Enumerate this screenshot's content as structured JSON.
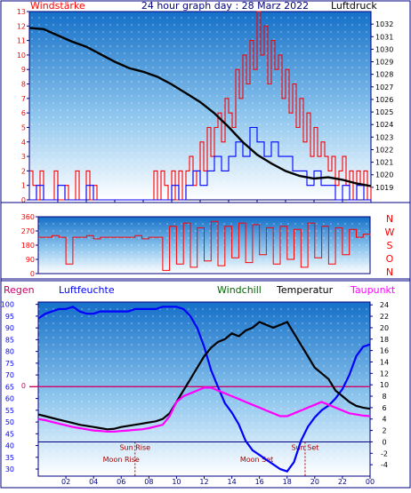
{
  "page": {
    "title": "24 hour graph day : 28 Marz 2022",
    "left_label": "Windstärke",
    "right_label": "Luftdruck"
  },
  "colors": {
    "frame": "#000080",
    "wind_gust": "#ff0000",
    "wind_avg": "#0000ff",
    "pressure": "#000000",
    "direction": "#ff0000",
    "regen": "#cc0066",
    "luftfeuchte": "#0000ff",
    "windchill": "#006600",
    "temperatur": "#000000",
    "taupunkt": "#ff00ff",
    "zero_line": "#cc0066",
    "sun_line": "#000080",
    "moon_text": "#aa0000"
  },
  "chart_data": [
    {
      "id": "wind-pressure",
      "type": "line",
      "x_ticks": [
        "02",
        "04",
        "06",
        "08",
        "10",
        "12",
        "14",
        "16",
        "18",
        "20",
        "22",
        "00"
      ],
      "xlim": [
        0,
        24
      ],
      "y_left": {
        "label": "Windstärke",
        "range": [
          0,
          13
        ],
        "ticks": [
          "0",
          "1",
          "2",
          "3",
          "4",
          "5",
          "6",
          "7",
          "8",
          "9",
          "10",
          "11",
          "12",
          "13"
        ]
      },
      "y_right": {
        "label": "Luftdruck",
        "range": [
          1018,
          1033
        ],
        "ticks": [
          "1019",
          "1020",
          "1021",
          "1022",
          "1023",
          "1024",
          "1025",
          "1026",
          "1027",
          "1028",
          "1029",
          "1030",
          "1031",
          "1032"
        ]
      },
      "series": [
        {
          "key": "gust",
          "axis": "left",
          "x": [
            0,
            0.25,
            0.5,
            0.75,
            1,
            1.25,
            1.5,
            1.75,
            2,
            2.25,
            2.5,
            2.75,
            3,
            3.25,
            3.5,
            3.75,
            4,
            4.25,
            4.5,
            4.75,
            5,
            5.25,
            5.5,
            5.75,
            6,
            6.25,
            6.5,
            6.75,
            7,
            7.25,
            7.5,
            7.75,
            8,
            8.25,
            8.5,
            8.75,
            9,
            9.25,
            9.5,
            9.75,
            10,
            10.25,
            10.5,
            10.75,
            11,
            11.25,
            11.5,
            11.75,
            12,
            12.25,
            12.5,
            12.75,
            13,
            13.25,
            13.5,
            13.75,
            14,
            14.25,
            14.5,
            14.75,
            15,
            15.25,
            15.5,
            15.75,
            16,
            16.25,
            16.5,
            16.75,
            17,
            17.25,
            17.5,
            17.75,
            18,
            18.25,
            18.5,
            18.75,
            19,
            19.25,
            19.5,
            19.75,
            20,
            20.25,
            20.5,
            20.75,
            21,
            21.25,
            21.5,
            21.75,
            22,
            22.25,
            22.5,
            22.75,
            23,
            23.25,
            23.5,
            23.75,
            24
          ],
          "values": [
            2,
            1,
            0,
            2,
            0,
            0,
            0,
            2,
            0,
            0,
            1,
            0,
            0,
            2,
            0,
            0,
            2,
            0,
            1,
            0,
            0,
            0,
            0,
            0,
            0,
            0,
            0,
            0,
            0,
            0,
            0,
            0,
            0,
            0,
            0,
            2,
            0,
            2,
            1,
            0,
            2,
            0,
            2,
            0,
            2,
            3,
            1,
            2,
            4,
            2,
            5,
            3,
            5,
            6,
            4,
            7,
            6,
            5,
            9,
            7,
            10,
            8,
            11,
            9,
            13,
            10,
            12,
            8,
            11,
            9,
            10,
            7,
            9,
            6,
            8,
            5,
            7,
            4,
            6,
            3,
            5,
            3,
            4,
            3,
            2,
            3,
            1,
            2,
            3,
            1,
            2,
            0,
            2,
            1,
            2,
            0,
            1
          ],
          "stroke": "wind_gust"
        },
        {
          "key": "avg",
          "axis": "left",
          "x": [
            0,
            0.5,
            1,
            1.5,
            2,
            2.5,
            3,
            3.5,
            4,
            4.5,
            5,
            5.5,
            6,
            6.5,
            7,
            7.5,
            8,
            8.5,
            9,
            9.5,
            10,
            10.5,
            11,
            11.5,
            12,
            12.5,
            13,
            13.5,
            14,
            14.5,
            15,
            15.5,
            16,
            16.5,
            17,
            17.5,
            18,
            18.5,
            19,
            19.5,
            20,
            20.5,
            21,
            21.5,
            22,
            22.5,
            23,
            23.5,
            24
          ],
          "values": [
            0,
            1,
            0,
            0,
            1,
            0,
            0,
            0,
            1,
            0,
            0,
            0,
            0,
            0,
            0,
            0,
            0,
            0,
            0,
            0,
            1,
            0,
            1,
            2,
            1,
            2,
            3,
            2,
            3,
            4,
            3,
            5,
            4,
            3,
            4,
            3,
            3,
            2,
            2,
            1,
            2,
            1,
            1,
            0,
            1,
            0,
            1,
            0,
            0
          ],
          "stroke": "wind_avg"
        },
        {
          "key": "pressure",
          "axis": "right",
          "x": [
            0,
            1,
            2,
            3,
            4,
            5,
            6,
            7,
            8,
            9,
            10,
            11,
            12,
            13,
            14,
            15,
            16,
            17,
            18,
            19,
            20,
            21,
            22,
            23,
            24
          ],
          "values": [
            1031.7,
            1031.6,
            1031.1,
            1030.6,
            1030.2,
            1029.6,
            1029.0,
            1028.5,
            1028.2,
            1027.8,
            1027.2,
            1026.5,
            1025.8,
            1024.9,
            1023.8,
            1022.6,
            1021.6,
            1020.9,
            1020.3,
            1019.9,
            1019.7,
            1019.8,
            1019.6,
            1019.3,
            1019.1
          ],
          "stroke": "pressure"
        }
      ]
    },
    {
      "id": "wind-direction",
      "type": "line",
      "xlim": [
        0,
        24
      ],
      "y_left_ticks": [
        "0",
        "90",
        "180",
        "270",
        "360"
      ],
      "y_range": [
        0,
        360
      ],
      "compass": [
        "N",
        "W",
        "S",
        "O",
        "N"
      ],
      "series": [
        {
          "key": "direction",
          "x": [
            0,
            0.5,
            1,
            1.5,
            2,
            2.5,
            3,
            3.5,
            4,
            4.5,
            5,
            5.5,
            6,
            6.5,
            7,
            7.5,
            8,
            8.5,
            9,
            9.5,
            10,
            10.5,
            11,
            11.5,
            12,
            12.5,
            13,
            13.5,
            14,
            14.5,
            15,
            15.5,
            16,
            16.5,
            17,
            17.5,
            18,
            18.5,
            19,
            19.5,
            20,
            20.5,
            21,
            21.5,
            22,
            22.5,
            23,
            23.5,
            24
          ],
          "values": [
            230,
            230,
            240,
            230,
            60,
            230,
            230,
            240,
            220,
            230,
            230,
            230,
            230,
            230,
            240,
            220,
            230,
            230,
            20,
            300,
            60,
            320,
            40,
            290,
            80,
            330,
            50,
            300,
            100,
            320,
            70,
            310,
            120,
            290,
            60,
            300,
            90,
            280,
            40,
            320,
            100,
            300,
            60,
            290,
            120,
            280,
            230,
            250,
            240
          ],
          "stroke": "direction"
        }
      ]
    },
    {
      "id": "temp-humidity",
      "type": "line",
      "x_ticks": [
        "02",
        "04",
        "06",
        "08",
        "10",
        "12",
        "14",
        "16",
        "18",
        "20",
        "22",
        "00"
      ],
      "xlim": [
        0,
        24
      ],
      "labels": {
        "regen": "Regen",
        "luftfeuchte": "Luftfeuchte",
        "windchill": "Windchill",
        "temperatur": "Temperatur",
        "taupunkt": "Taupunkt"
      },
      "zero_label": "0",
      "y_left": {
        "range": [
          27,
          101
        ],
        "ticks": [
          "30",
          "35",
          "40",
          "45",
          "50",
          "55",
          "60",
          "65",
          "70",
          "75",
          "80",
          "85",
          "90",
          "95",
          "100"
        ]
      },
      "y_right": {
        "range": [
          -6,
          24.5
        ],
        "ticks": [
          "-4",
          "-2",
          "0",
          "2",
          "4",
          "6",
          "8",
          "10",
          "12",
          "14",
          "16",
          "18",
          "20",
          "22",
          "24"
        ]
      },
      "annotations": {
        "sun_rise": "Sun Rise",
        "sun_set": "Sun Set",
        "moon_rise": "Moon Rise",
        "moon_set": "Moon Set",
        "sun_rise_x": 7.0,
        "sun_set_x": 19.3,
        "moon_rise_x": 6.0,
        "moon_set_x": 15.8,
        "sun_line_value": 0,
        "sun_rise_time": "",
        "sun_set_time": ""
      },
      "series": [
        {
          "key": "humidity",
          "axis": "left",
          "x": [
            0,
            0.5,
            1,
            1.5,
            2,
            2.5,
            3,
            3.5,
            4,
            4.5,
            5,
            5.5,
            6,
            6.5,
            7,
            7.5,
            8,
            8.5,
            9,
            9.5,
            10,
            10.5,
            11,
            11.5,
            12,
            12.5,
            13,
            13.5,
            14,
            14.5,
            15,
            15.5,
            16,
            16.5,
            17,
            17.5,
            18,
            18.5,
            19,
            19.5,
            20,
            20.5,
            21,
            21.5,
            22,
            22.5,
            23,
            23.5,
            24
          ],
          "values": [
            94,
            96,
            97,
            98,
            98,
            99,
            97,
            96,
            96,
            97,
            97,
            97,
            97,
            97,
            98,
            98,
            98,
            98,
            99,
            99,
            99,
            98,
            95,
            90,
            82,
            72,
            65,
            58,
            54,
            49,
            42,
            38,
            36,
            34,
            32,
            30,
            29,
            33,
            42,
            48,
            52,
            55,
            57,
            60,
            64,
            70,
            78,
            82,
            83
          ],
          "stroke": "luftfeuchte"
        },
        {
          "key": "temperature",
          "axis": "right",
          "x": [
            0,
            0.5,
            1,
            1.5,
            2,
            2.5,
            3,
            3.5,
            4,
            4.5,
            5,
            5.5,
            6,
            6.5,
            7,
            7.5,
            8,
            8.5,
            9,
            9.5,
            10,
            10.5,
            11,
            11.5,
            12,
            12.5,
            13,
            13.5,
            14,
            14.5,
            15,
            15.5,
            16,
            16.5,
            17,
            17.5,
            18,
            18.5,
            19,
            19.5,
            20,
            20.5,
            21,
            21.5,
            22,
            22.5,
            23,
            23.5,
            24
          ],
          "values": [
            4.8,
            4.5,
            4.2,
            3.9,
            3.6,
            3.3,
            3.0,
            2.8,
            2.6,
            2.4,
            2.2,
            2.3,
            2.6,
            2.8,
            3.0,
            3.2,
            3.4,
            3.6,
            4.0,
            5.0,
            7.0,
            9.0,
            11.0,
            13.0,
            15.0,
            16.5,
            17.5,
            18.0,
            19.0,
            18.5,
            19.5,
            20.0,
            21.0,
            20.5,
            20.0,
            20.5,
            21.0,
            19.0,
            17.0,
            15.0,
            13.0,
            12.0,
            11.0,
            9.0,
            8.0,
            7.0,
            6.3,
            6.0,
            5.8
          ],
          "stroke": "temperatur"
        },
        {
          "key": "dewpoint",
          "axis": "right",
          "x": [
            0,
            0.5,
            1,
            1.5,
            2,
            2.5,
            3,
            3.5,
            4,
            4.5,
            5,
            5.5,
            6,
            6.5,
            7,
            7.5,
            8,
            8.5,
            9,
            9.5,
            10,
            10.5,
            11,
            11.5,
            12,
            12.5,
            13,
            13.5,
            14,
            14.5,
            15,
            15.5,
            16,
            16.5,
            17,
            17.5,
            18,
            18.5,
            19,
            19.5,
            20,
            20.5,
            21,
            21.5,
            22,
            22.5,
            23,
            23.5,
            24
          ],
          "values": [
            4.0,
            3.8,
            3.5,
            3.2,
            2.9,
            2.6,
            2.4,
            2.2,
            2.0,
            1.9,
            1.8,
            1.8,
            1.9,
            2.0,
            2.1,
            2.2,
            2.4,
            2.7,
            3.0,
            4.5,
            7.0,
            8.0,
            8.5,
            9.0,
            9.5,
            9.5,
            9.0,
            8.5,
            8.0,
            7.5,
            7.0,
            6.5,
            6.0,
            5.5,
            5.0,
            4.5,
            4.5,
            5.0,
            5.5,
            6.0,
            6.5,
            7.0,
            6.5,
            6.0,
            5.5,
            5.0,
            4.8,
            4.6,
            4.5
          ],
          "stroke": "taupunkt"
        }
      ]
    }
  ]
}
